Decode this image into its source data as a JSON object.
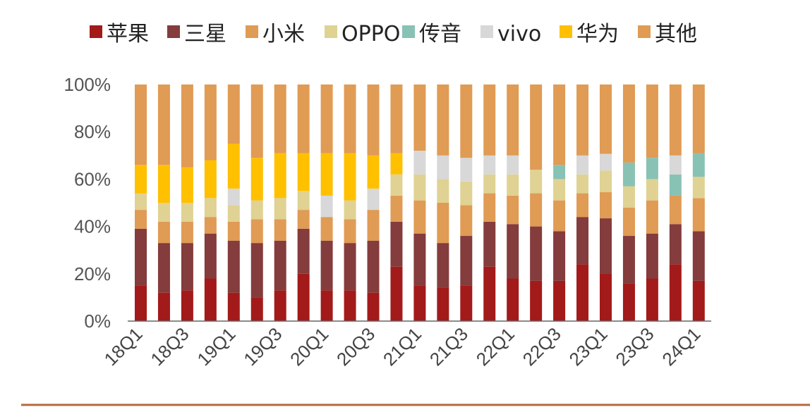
{
  "chart_data": {
    "type": "bar",
    "stacked": true,
    "normalized": true,
    "x_tick_labels": [
      "18Q1",
      "18Q3",
      "19Q1",
      "19Q3",
      "20Q1",
      "20Q3",
      "21Q1",
      "21Q3",
      "22Q1",
      "22Q3",
      "23Q1",
      "23Q3",
      "24Q1"
    ],
    "categories": [
      "18Q1",
      "18Q2",
      "18Q3",
      "18Q4",
      "19Q1",
      "19Q2",
      "19Q3",
      "19Q4",
      "20Q1",
      "20Q2",
      "20Q3",
      "20Q4",
      "21Q1",
      "21Q2",
      "21Q3",
      "21Q4",
      "22Q1",
      "22Q2",
      "22Q3",
      "22Q4",
      "23Q1",
      "23Q2",
      "23Q3",
      "23Q4",
      "24Q1"
    ],
    "ylim": [
      0,
      100
    ],
    "yticks": [
      "0%",
      "20%",
      "40%",
      "60%",
      "80%",
      "100%"
    ],
    "legend_position": "top",
    "series": [
      {
        "name": "苹果",
        "color": "#a31a1a",
        "values": [
          15,
          12,
          13,
          18,
          12,
          10,
          13,
          20,
          13,
          13,
          12,
          23,
          15,
          14,
          15,
          23,
          18,
          17,
          17,
          24,
          20,
          16,
          18,
          24,
          17
        ]
      },
      {
        "name": "三星",
        "color": "#843c3c",
        "values": [
          24,
          21,
          20,
          19,
          22,
          23,
          21,
          19,
          21,
          20,
          22,
          19,
          22,
          19,
          21,
          19,
          23,
          23,
          21,
          20,
          23,
          20,
          19,
          17,
          21
        ]
      },
      {
        "name": "小米",
        "color": "#e09b54",
        "values": [
          8,
          9,
          9,
          7,
          8,
          10,
          9,
          8,
          10,
          10,
          13,
          11,
          14,
          17,
          13,
          12,
          12,
          14,
          13,
          10,
          11,
          12,
          14,
          12,
          14
        ]
      },
      {
        "name": "OPPO",
        "color": "#dfd293",
        "values": [
          7,
          8,
          8,
          8,
          7,
          8,
          9,
          8,
          0,
          8,
          0,
          9,
          11,
          10,
          10,
          8,
          9,
          10,
          9,
          8,
          9,
          9,
          9,
          0,
          9
        ]
      },
      {
        "name": "传音",
        "color": "#88c2b4",
        "values": [
          0,
          0,
          0,
          0,
          0,
          0,
          0,
          0,
          0,
          0,
          0,
          0,
          0,
          0,
          0,
          0,
          0,
          0,
          6,
          0,
          0,
          10,
          9,
          9,
          10
        ]
      },
      {
        "name": "vivo",
        "color": "#d8d8d8",
        "values": [
          0,
          0,
          0,
          0,
          7,
          0,
          0,
          0,
          9,
          0,
          9,
          0,
          10,
          10,
          10,
          8,
          8,
          0,
          0,
          8,
          7,
          0,
          0,
          8,
          0
        ]
      },
      {
        "name": "华为",
        "color": "#ffc000",
        "values": [
          12,
          16,
          15,
          16,
          19,
          18,
          19,
          16,
          18,
          20,
          14,
          9,
          0,
          0,
          0,
          0,
          0,
          0,
          0,
          0,
          0,
          0,
          0,
          0,
          0
        ]
      },
      {
        "name": "其他",
        "color": "#e09b54",
        "values": [
          34,
          34,
          35,
          32,
          25,
          31,
          29,
          29,
          29,
          29,
          30,
          29,
          28,
          30,
          31,
          30,
          30,
          36,
          34,
          30,
          29,
          33,
          31,
          30,
          29
        ]
      }
    ]
  }
}
